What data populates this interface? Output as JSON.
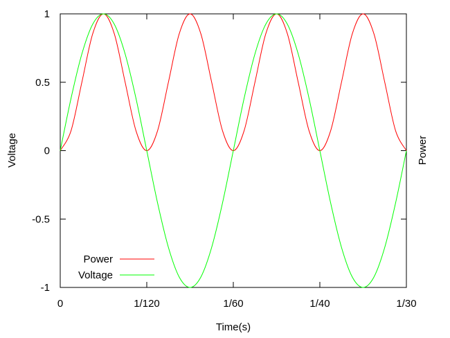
{
  "chart_data": {
    "type": "line",
    "title": "",
    "xlabel": "Time(s)",
    "ylabel": "Voltage",
    "y2label": "Power",
    "xlim": [
      0,
      0.0333333
    ],
    "ylim": [
      -1,
      1
    ],
    "x_ticks": [
      {
        "value": 0,
        "label": "0"
      },
      {
        "value": 0.0083333,
        "label": "1/120"
      },
      {
        "value": 0.0166667,
        "label": "1/60"
      },
      {
        "value": 0.025,
        "label": "1/40"
      },
      {
        "value": 0.0333333,
        "label": "1/30"
      }
    ],
    "y_ticks": [
      {
        "value": 1,
        "label": "1"
      },
      {
        "value": 0.5,
        "label": "0.5"
      },
      {
        "value": 0,
        "label": "0"
      },
      {
        "value": -0.5,
        "label": "-0.5"
      },
      {
        "value": -1,
        "label": "-1"
      }
    ],
    "grid": false,
    "legend_position": "bottom-left",
    "series": [
      {
        "name": "Power",
        "color": "#ff0000",
        "x": [
          0,
          0.0010417,
          0.0020833,
          0.003125,
          0.0041667,
          0.0052083,
          0.00625,
          0.0072917,
          0.0083333,
          0.009375,
          0.0104167,
          0.0114583,
          0.0125,
          0.0135417,
          0.0145833,
          0.015625,
          0.0166667,
          0.0177083,
          0.01875,
          0.0197917,
          0.0208333,
          0.021875,
          0.0229167,
          0.0239583,
          0.025,
          0.0260417,
          0.0270833,
          0.028125,
          0.0291667,
          0.0302083,
          0.03125,
          0.0322917,
          0.0333333
        ],
        "y": [
          0,
          0.146,
          0.5,
          0.854,
          1,
          0.854,
          0.5,
          0.146,
          0,
          0.146,
          0.5,
          0.854,
          1,
          0.854,
          0.5,
          0.146,
          0,
          0.146,
          0.5,
          0.854,
          1,
          0.854,
          0.5,
          0.146,
          0,
          0.146,
          0.5,
          0.854,
          1,
          0.854,
          0.5,
          0.146,
          0
        ]
      },
      {
        "name": "Voltage",
        "color": "#00ff00",
        "x": [
          0,
          0.0010417,
          0.0020833,
          0.003125,
          0.0041667,
          0.0052083,
          0.00625,
          0.0072917,
          0.0083333,
          0.009375,
          0.0104167,
          0.0114583,
          0.0125,
          0.0135417,
          0.0145833,
          0.015625,
          0.0166667,
          0.0177083,
          0.01875,
          0.0197917,
          0.0208333,
          0.021875,
          0.0229167,
          0.0239583,
          0.025,
          0.0260417,
          0.0270833,
          0.028125,
          0.0291667,
          0.0302083,
          0.03125,
          0.0322917,
          0.0333333
        ],
        "y": [
          0,
          0.383,
          0.707,
          0.924,
          1,
          0.924,
          0.707,
          0.383,
          0,
          -0.383,
          -0.707,
          -0.924,
          -1,
          -0.924,
          -0.707,
          -0.383,
          0,
          0.383,
          0.707,
          0.924,
          1,
          0.924,
          0.707,
          0.383,
          0,
          -0.383,
          -0.707,
          -0.924,
          -1,
          -0.924,
          -0.707,
          -0.383,
          0
        ]
      }
    ]
  }
}
